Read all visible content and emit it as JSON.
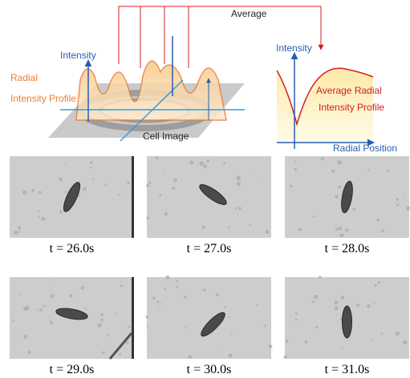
{
  "diagram": {
    "average_label": "Average",
    "left_panel": {
      "axis_label": "Intensity",
      "profile_label_line1": "Radial",
      "profile_label_line2": "Intensity Profile",
      "image_label": "Cell Image"
    },
    "right_panel": {
      "axis_label": "Intensity",
      "curve_label_line1": "Average Radial",
      "curve_label_line2": "Intensity Profile",
      "x_axis_label": "Radial Position"
    }
  },
  "frames": [
    {
      "caption": "t = 26.0s"
    },
    {
      "caption": "t = 27.0s"
    },
    {
      "caption": "t = 28.0s"
    },
    {
      "caption": "t = 29.0s"
    },
    {
      "caption": "t = 30.0s"
    },
    {
      "caption": "t = 31.0s"
    }
  ]
}
